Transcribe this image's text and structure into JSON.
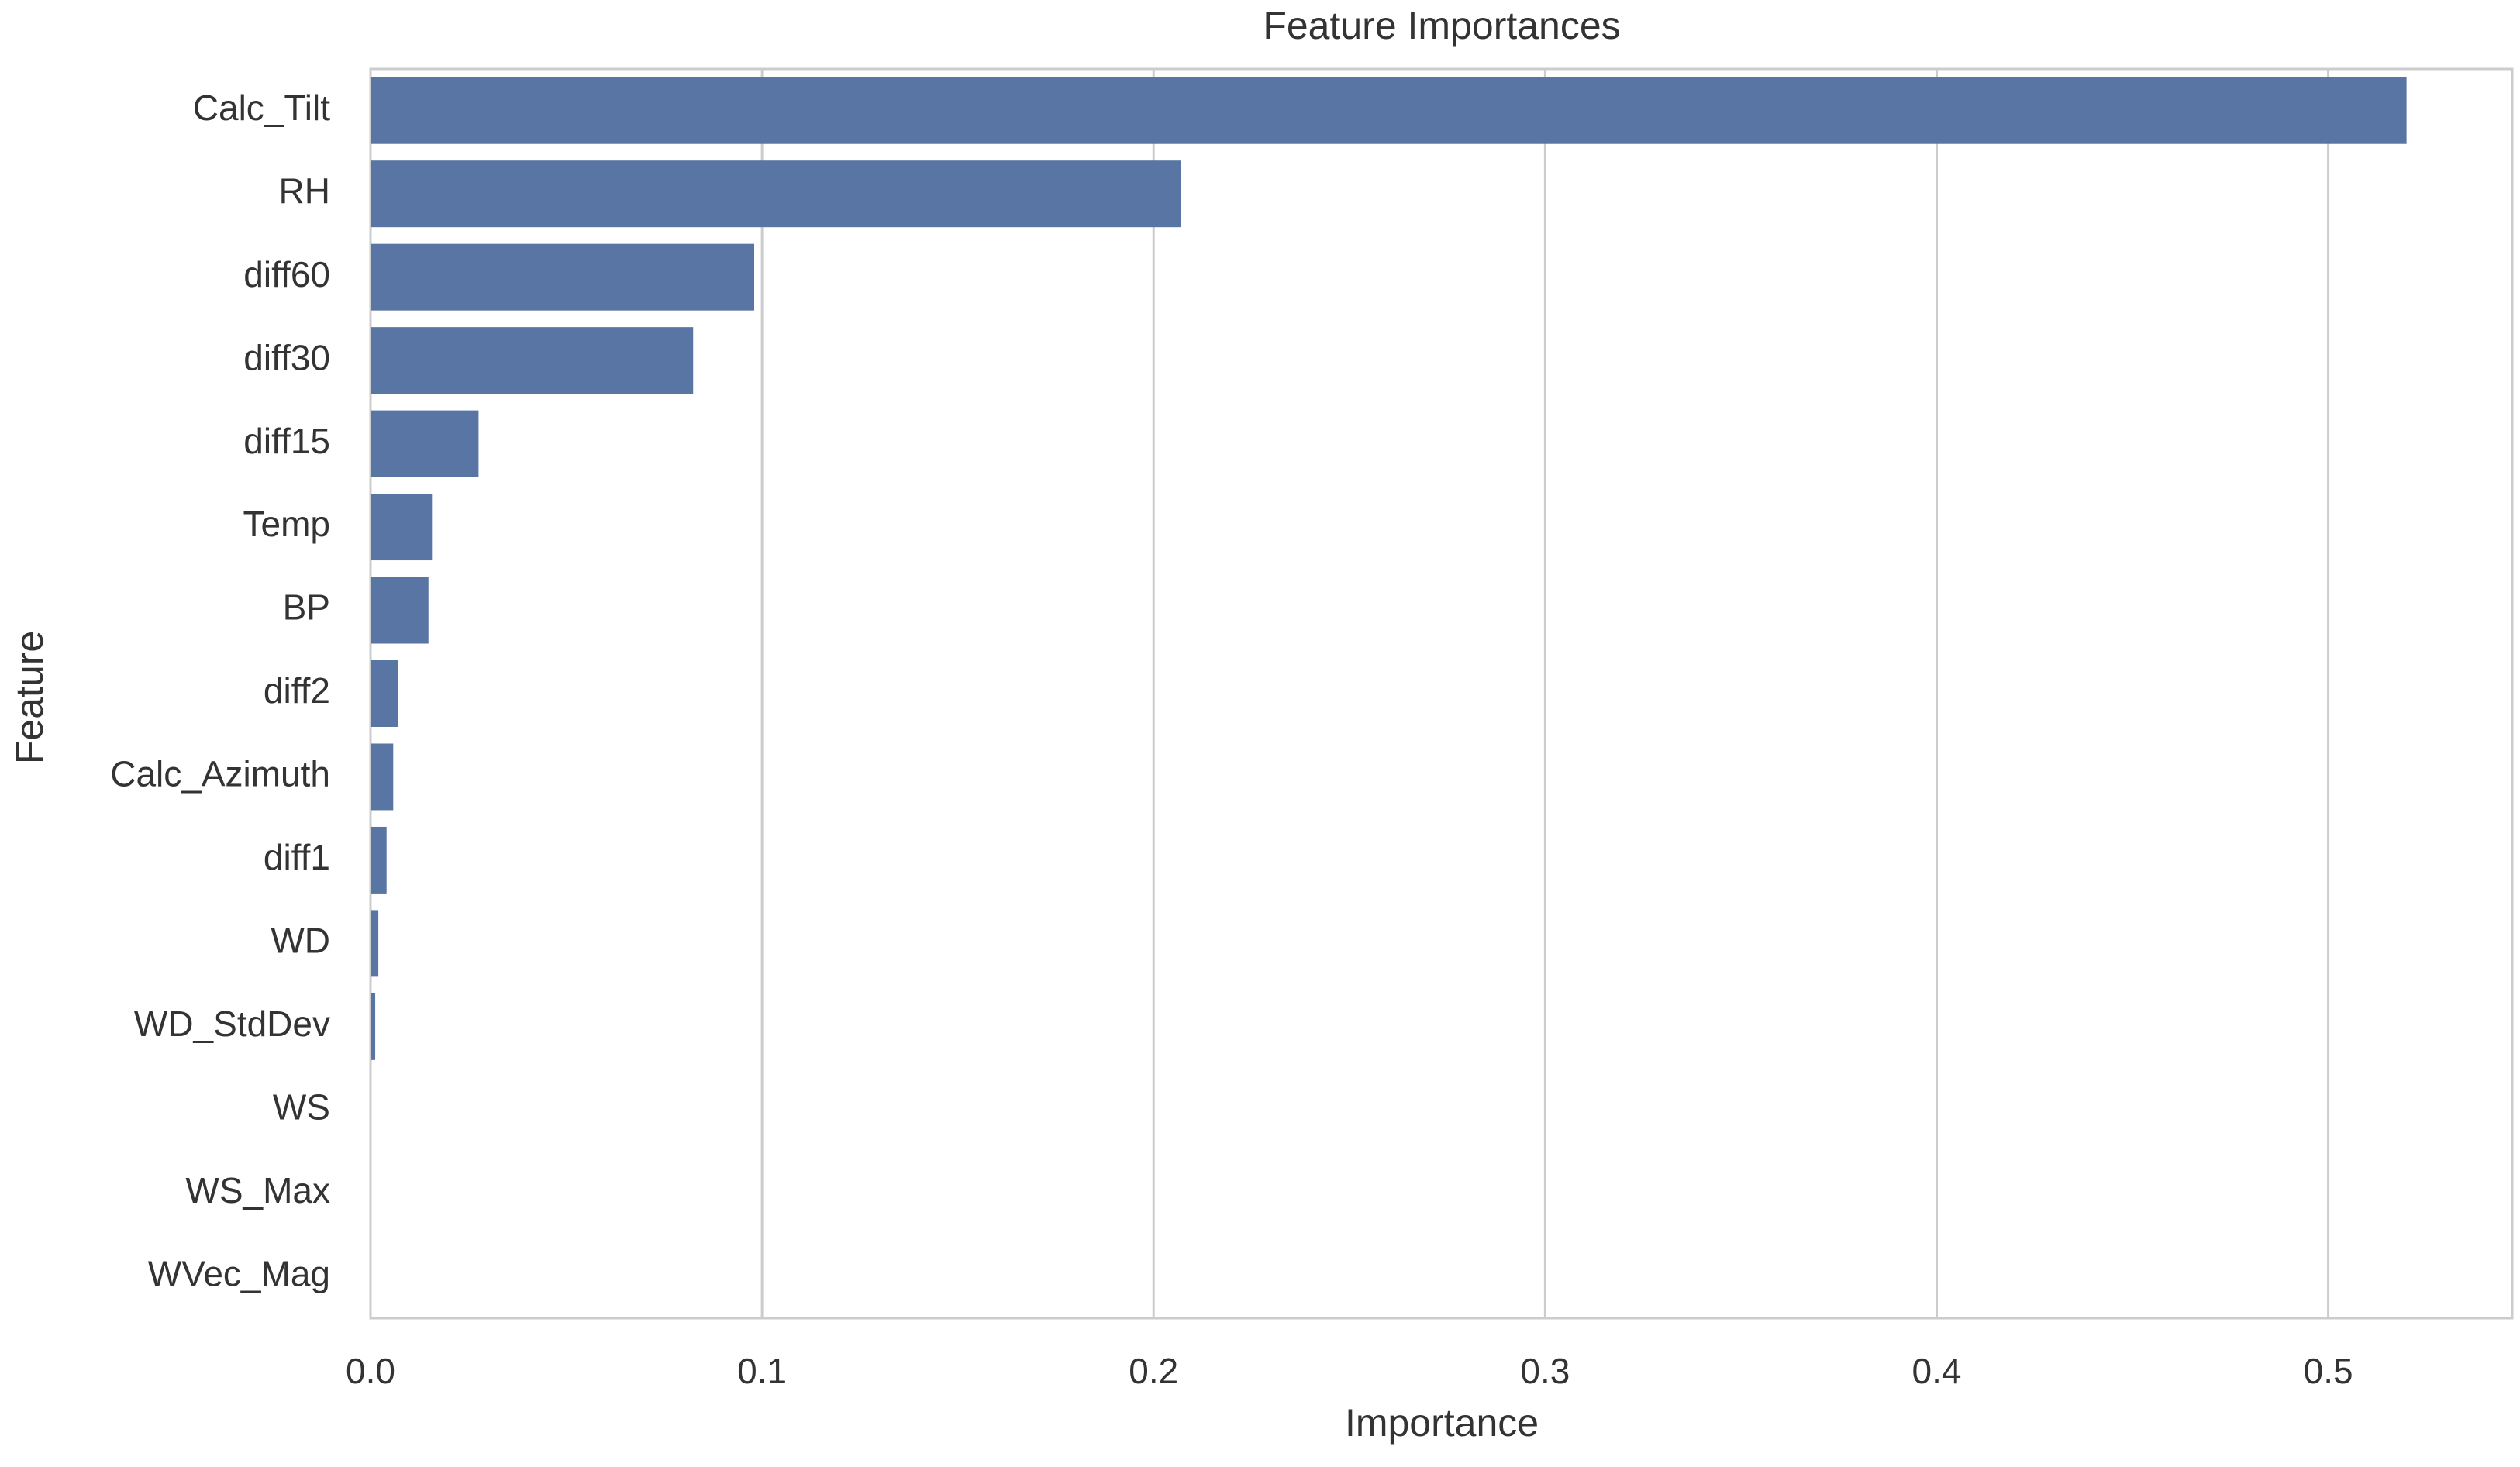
{
  "chart_data": {
    "type": "barh",
    "title": "Feature Importances",
    "x_label": "Importance",
    "y_label": "Feature",
    "categories": [
      "Calc_Tilt",
      "RH",
      "diff60",
      "diff30",
      "diff15",
      "Temp",
      "BP",
      "diff2",
      "Calc_Azimuth",
      "diff1",
      "WD",
      "WD_StdDev",
      "WS",
      "WS_Max",
      "WVec_Mag"
    ],
    "values": [
      0.52,
      0.207,
      0.098,
      0.0824,
      0.0276,
      0.0157,
      0.0148,
      0.007,
      0.0058,
      0.0041,
      0.002,
      0.0012,
      0,
      0,
      0
    ],
    "color": "#5875a4",
    "xlim": [
      0,
      0.547
    ],
    "xticks": [
      {
        "value": 0,
        "label": "0.0"
      },
      0.1,
      0.2,
      0.3,
      0.4,
      0.5
    ],
    "grid": true
  }
}
